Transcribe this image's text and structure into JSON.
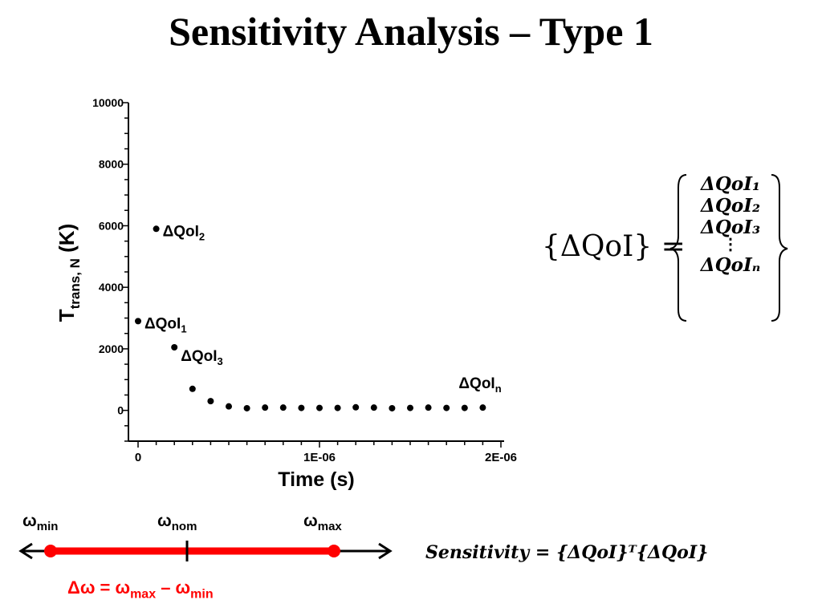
{
  "title": "Sensitivity Analysis – Type 1",
  "chart_data": {
    "type": "scatter",
    "xlabel": "Time (s)",
    "ylabel": "T",
    "ylabel_sub": "trans, N",
    "ylabel_unit": "(K)",
    "xlim": [
      0,
      2e-06
    ],
    "ylim": [
      -1000,
      10000
    ],
    "x_ticks": [
      0,
      1e-06,
      2e-06
    ],
    "x_tick_labels": [
      "0",
      "1E-06",
      "2E-06"
    ],
    "y_ticks": [
      0,
      2000,
      4000,
      6000,
      8000,
      10000
    ],
    "y_tick_labels": [
      "0",
      "2000",
      "4000",
      "6000",
      "8000",
      "10000"
    ],
    "points": [
      {
        "x": 0.0,
        "y": 2900
      },
      {
        "x": 1e-07,
        "y": 5900
      },
      {
        "x": 2e-07,
        "y": 2050
      },
      {
        "x": 3e-07,
        "y": 700
      },
      {
        "x": 4e-07,
        "y": 300
      },
      {
        "x": 5e-07,
        "y": 130
      },
      {
        "x": 6e-07,
        "y": 70
      },
      {
        "x": 7e-07,
        "y": 90
      },
      {
        "x": 8e-07,
        "y": 90
      },
      {
        "x": 9e-07,
        "y": 80
      },
      {
        "x": 1e-06,
        "y": 80
      },
      {
        "x": 1.1e-06,
        "y": 80
      },
      {
        "x": 1.2e-06,
        "y": 100
      },
      {
        "x": 1.3e-06,
        "y": 90
      },
      {
        "x": 1.4e-06,
        "y": 70
      },
      {
        "x": 1.5e-06,
        "y": 80
      },
      {
        "x": 1.6e-06,
        "y": 90
      },
      {
        "x": 1.7e-06,
        "y": 80
      },
      {
        "x": 1.8e-06,
        "y": 80
      },
      {
        "x": 1.9e-06,
        "y": 90
      }
    ],
    "annotations": [
      {
        "text": "ΔQoI",
        "sub": "2",
        "x": 1e-07,
        "y": 5900
      },
      {
        "text": "ΔQoI",
        "sub": "1",
        "x": 0.0,
        "y": 2900
      },
      {
        "text": "ΔQoI",
        "sub": "3",
        "x": 2e-07,
        "y": 2050
      },
      {
        "text": "ΔQoI",
        "sub": "n",
        "x": 1.9e-06,
        "y": 90
      }
    ]
  },
  "vector_eq": {
    "lhs": "{ΔQoI} =",
    "items": [
      "ΔQoI₁",
      "ΔQoI₂",
      "ΔQoI₃",
      "⋮",
      "ΔQoIₙ"
    ]
  },
  "sensitivity_eq": "Sensitivity = {ΔQoI}ᵀ{ΔQoI}",
  "omega": {
    "min": {
      "base": "ω",
      "sub": "min"
    },
    "nom": {
      "base": "ω",
      "sub": "nom"
    },
    "max": {
      "base": "ω",
      "sub": "max"
    }
  },
  "delta_eq": {
    "lhs": "Δω  = ω",
    "sub1": "max",
    "mid": " – ω",
    "sub2": "min"
  },
  "colors": {
    "accent": "#ff0000",
    "ink": "#000000"
  }
}
